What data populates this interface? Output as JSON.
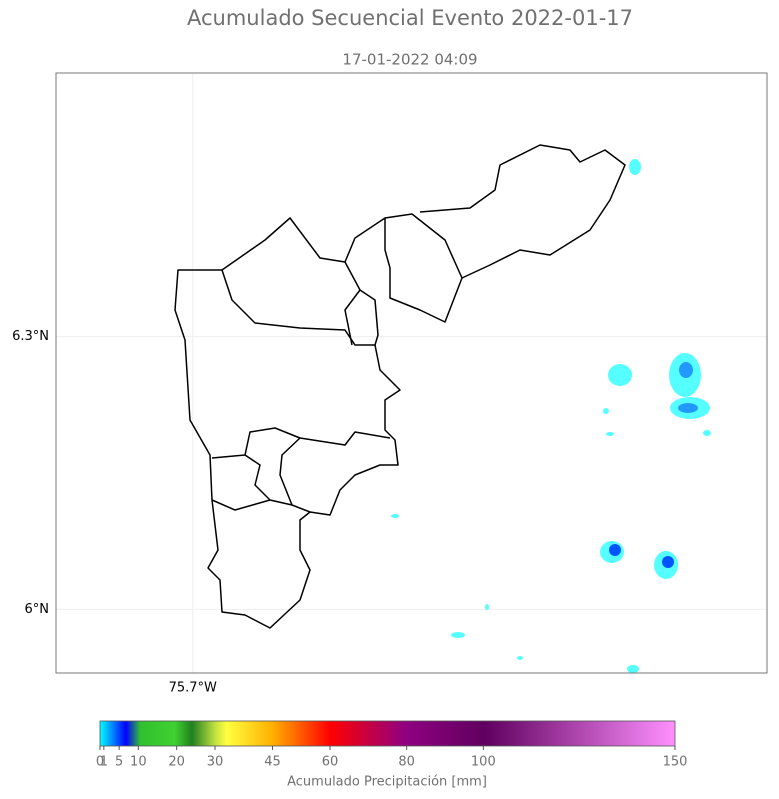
{
  "map": {
    "title": "Acumulado Secuencial Evento 2022-01-17",
    "subtitle": "17-01-2022 04:09",
    "lon_range": [
      -75.85,
      -75.07
    ],
    "lat_range": [
      5.93,
      6.59
    ],
    "lon_ticks": [
      {
        "value": -75.7,
        "label": "75.7°W"
      }
    ],
    "lat_ticks": [
      {
        "value": 6.3,
        "label": "6.3°N"
      },
      {
        "value": 6.0,
        "label": "6°N"
      }
    ],
    "colorbar": {
      "label": "Acumulado Precipitación [mm]",
      "range": [
        0,
        150
      ],
      "ticks": [
        0,
        1,
        5,
        10,
        20,
        30,
        45,
        60,
        80,
        100,
        150
      ]
    }
  }
}
